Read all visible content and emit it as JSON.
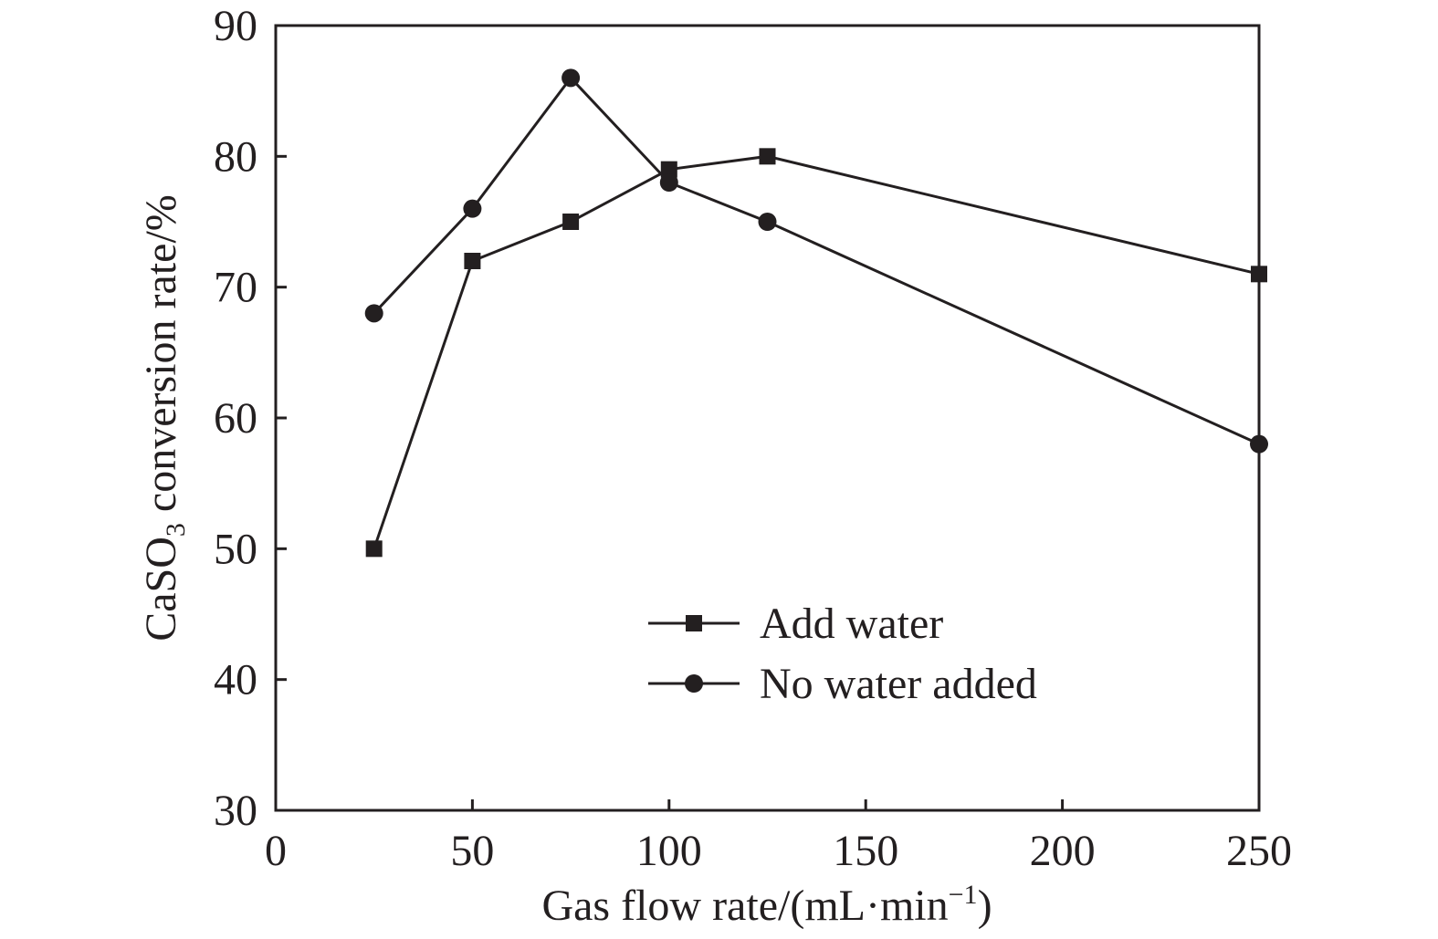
{
  "chart_data": {
    "type": "line",
    "xlabel": {
      "main": "Gas flow rate/(mL·min",
      "sup": "−1",
      "tail": ")"
    },
    "ylabel": {
      "pre": "CaSO",
      "sub": "3",
      "post": " conversion rate/%"
    },
    "xlim": [
      0,
      250
    ],
    "ylim": [
      30,
      90
    ],
    "xticks": [
      "0",
      "50",
      "100",
      "150",
      "200",
      "250"
    ],
    "yticks": [
      "30",
      "40",
      "50",
      "60",
      "70",
      "80",
      "90"
    ],
    "grid": false,
    "legend_position": "lower-center",
    "series": [
      {
        "name": "Add water",
        "marker": "square",
        "color": "#231f20",
        "x": [
          25,
          50,
          75,
          100,
          125,
          250
        ],
        "y": [
          50,
          72,
          75,
          79,
          80,
          71
        ]
      },
      {
        "name": "No water added",
        "marker": "circle",
        "color": "#231f20",
        "x": [
          25,
          50,
          75,
          100,
          125,
          250
        ],
        "y": [
          68,
          76,
          86,
          78,
          75,
          58
        ]
      }
    ]
  }
}
